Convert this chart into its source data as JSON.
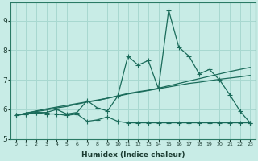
{
  "xlabel": "Humidex (Indice chaleur)",
  "x_values": [
    0,
    1,
    2,
    3,
    4,
    5,
    6,
    7,
    8,
    9,
    10,
    11,
    12,
    13,
    14,
    15,
    16,
    17,
    18,
    19,
    20,
    21,
    22,
    23
  ],
  "line1": [
    5.8,
    5.85,
    5.9,
    5.9,
    6.0,
    5.85,
    5.9,
    6.3,
    6.05,
    5.95,
    6.45,
    7.8,
    7.5,
    7.65,
    6.7,
    9.35,
    8.1,
    7.8,
    7.2,
    7.35,
    7.0,
    6.5,
    5.95,
    5.55
  ],
  "line2": [
    5.8,
    5.85,
    5.9,
    5.85,
    5.85,
    5.8,
    5.85,
    5.6,
    5.65,
    5.75,
    5.6,
    5.55,
    5.55,
    5.55,
    5.55,
    5.55,
    5.55,
    5.55,
    5.55,
    5.55,
    5.55,
    5.55,
    5.55,
    5.55
  ],
  "line3": [
    5.8,
    5.88,
    5.93,
    5.98,
    6.05,
    6.1,
    6.18,
    6.25,
    6.3,
    6.38,
    6.45,
    6.52,
    6.58,
    6.64,
    6.7,
    6.76,
    6.82,
    6.88,
    6.92,
    6.97,
    7.02,
    7.06,
    7.1,
    7.15
  ],
  "line4": [
    5.8,
    5.88,
    5.95,
    6.02,
    6.08,
    6.14,
    6.2,
    6.26,
    6.32,
    6.38,
    6.46,
    6.54,
    6.6,
    6.65,
    6.72,
    6.8,
    6.88,
    6.96,
    7.04,
    7.12,
    7.2,
    7.28,
    7.35,
    7.42
  ],
  "bg_color": "#c8ece6",
  "grid_color": "#a8d8d0",
  "line_color": "#1a6b5a",
  "ylim": [
    5.0,
    9.6
  ],
  "xlim": [
    -0.5,
    23.5
  ],
  "yticks": [
    5,
    6,
    7,
    8,
    9
  ],
  "xticks": [
    0,
    1,
    2,
    3,
    4,
    5,
    6,
    7,
    8,
    9,
    10,
    11,
    12,
    13,
    14,
    15,
    16,
    17,
    18,
    19,
    20,
    21,
    22,
    23
  ]
}
